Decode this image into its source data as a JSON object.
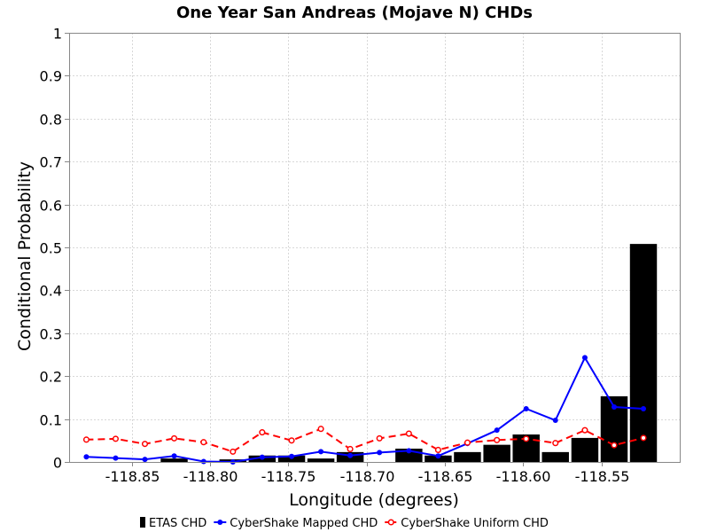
{
  "chart_data": {
    "type": "bar",
    "title": "One Year San Andreas (Mojave N) CHDs",
    "xlabel": "Longitude (degrees)",
    "ylabel": "Conditional Probability",
    "xlim": [
      -118.89,
      -118.5
    ],
    "ylim": [
      0,
      1
    ],
    "xticks": [
      -118.85,
      -118.8,
      -118.75,
      -118.7,
      -118.65,
      -118.6,
      -118.55
    ],
    "xtick_labels": [
      "-118.85",
      "-118.80",
      "-118.75",
      "-118.70",
      "-118.65",
      "-118.60",
      "-118.55"
    ],
    "yticks": [
      0,
      0.1,
      0.2,
      0.3,
      0.4,
      0.5,
      0.6,
      0.7,
      0.8,
      0.9,
      1
    ],
    "ytick_labels": [
      "0",
      "0.1",
      "0.2",
      "0.3",
      "0.4",
      "0.5",
      "0.6",
      "0.7",
      "0.8",
      "0.9",
      "1"
    ],
    "grid": true,
    "legend_position": "bottom",
    "series": [
      {
        "name": "ETAS CHD",
        "type": "bar",
        "color": "#000000",
        "x": [
          -118.8603,
          -118.8416,
          -118.8229,
          -118.8041,
          -118.7854,
          -118.7667,
          -118.7479,
          -118.7292,
          -118.7105,
          -118.6918,
          -118.673,
          -118.6543,
          -118.6356,
          -118.6168,
          -118.5981,
          -118.5794,
          -118.5606,
          -118.5419,
          -118.5232
        ],
        "values": [
          0.0,
          0.0,
          0.008,
          0.0,
          0.006,
          0.015,
          0.015,
          0.008,
          0.023,
          0.0,
          0.031,
          0.015,
          0.023,
          0.04,
          0.064,
          0.023,
          0.056,
          0.153,
          0.508
        ]
      },
      {
        "name": "CyberShake Mapped CHD",
        "type": "line",
        "color": "#0000ff",
        "x": [
          -118.879,
          -118.8603,
          -118.8416,
          -118.8229,
          -118.8041,
          -118.7854,
          -118.7667,
          -118.7479,
          -118.7292,
          -118.7105,
          -118.6918,
          -118.673,
          -118.6543,
          -118.6356,
          -118.6168,
          -118.5981,
          -118.5794,
          -118.5606,
          -118.5419,
          -118.5232
        ],
        "values": [
          0.012,
          0.009,
          0.006,
          0.014,
          0.001,
          0.0,
          0.011,
          0.013,
          0.024,
          0.015,
          0.022,
          0.026,
          0.014,
          0.043,
          0.074,
          0.124,
          0.097,
          0.243,
          0.128,
          0.124
        ]
      },
      {
        "name": "CyberShake Uniform CHD",
        "type": "line",
        "color": "#ff0000",
        "x": [
          -118.879,
          -118.8603,
          -118.8416,
          -118.8229,
          -118.8041,
          -118.7854,
          -118.7667,
          -118.7479,
          -118.7292,
          -118.7105,
          -118.6918,
          -118.673,
          -118.6543,
          -118.6356,
          -118.6168,
          -118.5981,
          -118.5794,
          -118.5606,
          -118.5419,
          -118.5232
        ],
        "values": [
          0.052,
          0.054,
          0.042,
          0.055,
          0.046,
          0.024,
          0.069,
          0.05,
          0.077,
          0.03,
          0.055,
          0.066,
          0.028,
          0.045,
          0.051,
          0.054,
          0.044,
          0.074,
          0.039,
          0.056
        ]
      }
    ]
  }
}
